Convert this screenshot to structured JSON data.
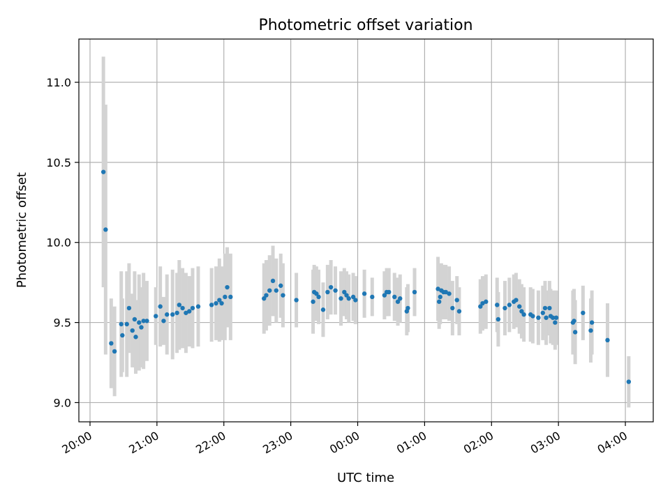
{
  "chart_data": {
    "type": "scatter",
    "title": "Photometric offset variation",
    "xlabel": "UTC time",
    "ylabel": "Photometric offset",
    "x_ticks": [
      "20:00",
      "21:00",
      "22:00",
      "23:00",
      "00:00",
      "01:00",
      "02:00",
      "03:00",
      "04:00"
    ],
    "y_ticks": [
      "9.0",
      "9.5",
      "10.0",
      "10.5",
      "11.0"
    ],
    "xlim": [
      "19:50",
      "04:25"
    ],
    "ylim": [
      8.88,
      11.27
    ],
    "grid": true,
    "marker_color": "#1f77b4",
    "errorbar_color": "#d3d3d3",
    "series": [
      {
        "x": [
          "20:12",
          "20:14",
          "20:19",
          "20:22",
          "20:28",
          "20:29",
          "20:33",
          "20:35",
          "20:38",
          "20:40",
          "20:41",
          "20:44",
          "20:46",
          "20:48",
          "20:51",
          "20:59",
          "21:03",
          "21:06",
          "21:09",
          "21:14",
          "21:18",
          "21:20",
          "21:23",
          "21:26",
          "21:29",
          "21:32",
          "21:37",
          "21:49",
          "21:53",
          "21:56",
          "21:58",
          "22:01",
          "22:03",
          "22:06",
          "22:36",
          "22:38",
          "22:41",
          "22:44",
          "22:47",
          "22:51",
          "22:53",
          "23:05",
          "23:20",
          "23:21",
          "23:23",
          "23:25",
          "23:29",
          "23:33",
          "23:36",
          "23:40",
          "23:45",
          "23:48",
          "23:50",
          "23:52",
          "23:56",
          "23:58",
          "00:06",
          "00:13",
          "00:24",
          "00:26",
          "00:28",
          "00:33",
          "00:36",
          "00:38",
          "00:44",
          "00:45",
          "00:51",
          "01:12",
          "01:13",
          "01:14",
          "01:15",
          "01:17",
          "01:19",
          "01:22",
          "01:25",
          "01:29",
          "01:31",
          "01:50",
          "01:52",
          "01:55",
          "02:05",
          "02:06",
          "02:12",
          "02:16",
          "02:20",
          "02:22",
          "02:25",
          "02:27",
          "02:29",
          "02:35",
          "02:37",
          "02:42",
          "02:46",
          "02:48",
          "02:49",
          "02:52",
          "02:53",
          "02:55",
          "02:57",
          "02:58",
          "03:13",
          "03:14",
          "03:15",
          "03:22",
          "03:29",
          "03:30",
          "03:44",
          "04:03"
        ],
        "y": [
          10.44,
          10.08,
          9.37,
          9.32,
          9.49,
          9.42,
          9.49,
          9.59,
          9.45,
          9.52,
          9.41,
          9.5,
          9.47,
          9.51,
          9.51,
          9.54,
          9.6,
          9.51,
          9.55,
          9.55,
          9.56,
          9.61,
          9.59,
          9.56,
          9.57,
          9.59,
          9.6,
          9.61,
          9.62,
          9.64,
          9.62,
          9.66,
          9.72,
          9.66,
          9.65,
          9.67,
          9.7,
          9.76,
          9.7,
          9.73,
          9.67,
          9.64,
          9.63,
          9.69,
          9.68,
          9.66,
          9.58,
          9.69,
          9.72,
          9.7,
          9.65,
          9.69,
          9.67,
          9.65,
          9.66,
          9.64,
          9.68,
          9.66,
          9.67,
          9.69,
          9.69,
          9.66,
          9.63,
          9.65,
          9.57,
          9.59,
          9.69,
          9.71,
          9.63,
          9.66,
          9.7,
          9.69,
          9.69,
          9.68,
          9.59,
          9.64,
          9.57,
          9.6,
          9.62,
          9.63,
          9.61,
          9.52,
          9.59,
          9.61,
          9.63,
          9.64,
          9.6,
          9.57,
          9.55,
          9.55,
          9.54,
          9.53,
          9.56,
          9.59,
          9.53,
          9.59,
          9.54,
          9.53,
          9.5,
          9.53,
          9.5,
          9.51,
          9.44,
          9.56,
          9.45,
          9.5,
          9.39,
          9.13
        ],
        "yerr": [
          0.72,
          0.78,
          0.28,
          0.28,
          0.33,
          0.23,
          0.33,
          0.28,
          0.23,
          0.3,
          0.23,
          0.3,
          0.25,
          0.3,
          0.25,
          0.18,
          0.25,
          0.15,
          0.25,
          0.28,
          0.25,
          0.28,
          0.25,
          0.25,
          0.22,
          0.25,
          0.25,
          0.23,
          0.23,
          0.26,
          0.23,
          0.27,
          0.25,
          0.27,
          0.22,
          0.22,
          0.22,
          0.22,
          0.2,
          0.2,
          0.2,
          0.17,
          0.2,
          0.17,
          0.17,
          0.17,
          0.17,
          0.17,
          0.17,
          0.15,
          0.17,
          0.15,
          0.15,
          0.15,
          0.15,
          0.15,
          0.15,
          0.12,
          0.15,
          0.15,
          0.15,
          0.15,
          0.15,
          0.15,
          0.15,
          0.15,
          0.15,
          0.2,
          0.17,
          0.17,
          0.17,
          0.17,
          0.17,
          0.17,
          0.17,
          0.15,
          0.15,
          0.17,
          0.17,
          0.17,
          0.17,
          0.17,
          0.17,
          0.17,
          0.17,
          0.17,
          0.17,
          0.17,
          0.17,
          0.17,
          0.17,
          0.17,
          0.17,
          0.17,
          0.17,
          0.17,
          0.17,
          0.17,
          0.17,
          0.17,
          0.2,
          0.2,
          0.2,
          0.17,
          0.2,
          0.2,
          0.23,
          0.16
        ]
      }
    ]
  }
}
